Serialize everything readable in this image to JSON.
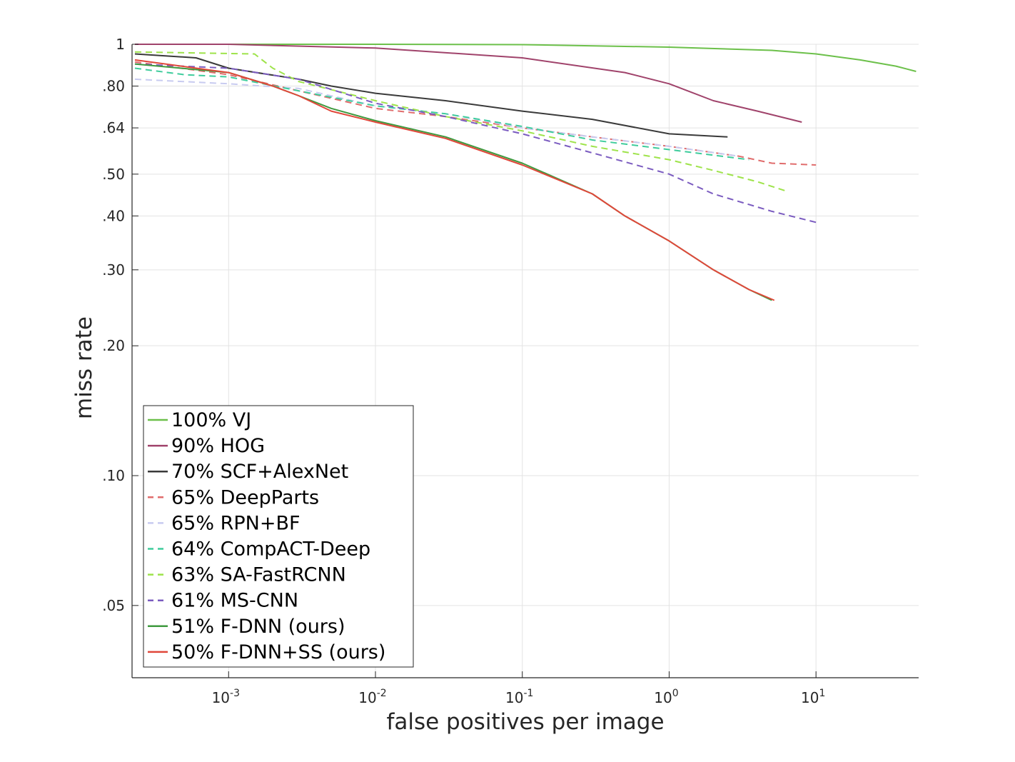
{
  "chart_data": {
    "type": "line",
    "title": "",
    "xlabel": "false positives per image",
    "ylabel": "miss rate",
    "x_scale": "log",
    "y_scale": "log",
    "xlim": [
      0.00022,
      50
    ],
    "ylim": [
      0.034,
      1
    ],
    "x_ticks": [
      {
        "value": 0.001,
        "base": "10",
        "exp": "-3"
      },
      {
        "value": 0.01,
        "base": "10",
        "exp": "-2"
      },
      {
        "value": 0.1,
        "base": "10",
        "exp": "-1"
      },
      {
        "value": 1,
        "base": "10",
        "exp": "0"
      },
      {
        "value": 10,
        "base": "10",
        "exp": "1"
      }
    ],
    "y_ticks": [
      {
        "value": 1,
        "label": "1"
      },
      {
        "value": 0.8,
        "label": ".80"
      },
      {
        "value": 0.64,
        "label": ".64"
      },
      {
        "value": 0.5,
        "label": ".50"
      },
      {
        "value": 0.4,
        "label": ".40"
      },
      {
        "value": 0.3,
        "label": ".30"
      },
      {
        "value": 0.2,
        "label": ".20"
      },
      {
        "value": 0.1,
        "label": ".10"
      },
      {
        "value": 0.05,
        "label": ".05"
      }
    ],
    "grid": true,
    "legend_position": "bottom-left",
    "series": [
      {
        "name": "100% VJ",
        "color": "#6cc04a",
        "dash": false,
        "points": [
          [
            0.00023,
            1.0
          ],
          [
            0.01,
            1.0
          ],
          [
            0.1,
            0.998
          ],
          [
            1,
            0.985
          ],
          [
            5,
            0.968
          ],
          [
            10,
            0.95
          ],
          [
            20,
            0.92
          ],
          [
            35,
            0.89
          ],
          [
            48,
            0.865
          ]
        ]
      },
      {
        "name": "90% HOG",
        "color": "#a0436b",
        "dash": false,
        "points": [
          [
            0.00023,
            1.0
          ],
          [
            0.001,
            1.0
          ],
          [
            0.01,
            0.98
          ],
          [
            0.1,
            0.93
          ],
          [
            0.5,
            0.86
          ],
          [
            1,
            0.81
          ],
          [
            2,
            0.74
          ],
          [
            4,
            0.7
          ],
          [
            8,
            0.66
          ]
        ]
      },
      {
        "name": "70% SCF+AlexNet",
        "color": "#3a3a3a",
        "dash": false,
        "points": [
          [
            0.00023,
            0.95
          ],
          [
            0.0006,
            0.93
          ],
          [
            0.001,
            0.88
          ],
          [
            0.003,
            0.83
          ],
          [
            0.005,
            0.8
          ],
          [
            0.01,
            0.77
          ],
          [
            0.03,
            0.74
          ],
          [
            0.1,
            0.7
          ],
          [
            0.3,
            0.67
          ],
          [
            1,
            0.62
          ],
          [
            2.5,
            0.61
          ]
        ]
      },
      {
        "name": "65% DeepParts",
        "color": "#e06c6c",
        "dash": true,
        "points": [
          [
            0.00023,
            0.91
          ],
          [
            0.001,
            0.85
          ],
          [
            0.003,
            0.78
          ],
          [
            0.01,
            0.71
          ],
          [
            0.03,
            0.68
          ],
          [
            0.1,
            0.64
          ],
          [
            0.3,
            0.61
          ],
          [
            1,
            0.58
          ],
          [
            3,
            0.55
          ],
          [
            5,
            0.53
          ],
          [
            10,
            0.525
          ]
        ]
      },
      {
        "name": "65% RPN+BF",
        "color": "#c8cbf0",
        "dash": true,
        "points": [
          [
            0.00023,
            0.83
          ],
          [
            0.001,
            0.81
          ],
          [
            0.003,
            0.79
          ],
          [
            0.01,
            0.72
          ],
          [
            0.03,
            0.69
          ],
          [
            0.1,
            0.64
          ],
          [
            0.3,
            0.61
          ],
          [
            1,
            0.58
          ],
          [
            3,
            0.55
          ]
        ]
      },
      {
        "name": "64% CompACT-Deep",
        "color": "#3ecc9c",
        "dash": true,
        "points": [
          [
            0.00023,
            0.88
          ],
          [
            0.0005,
            0.85
          ],
          [
            0.001,
            0.84
          ],
          [
            0.003,
            0.78
          ],
          [
            0.01,
            0.72
          ],
          [
            0.03,
            0.69
          ],
          [
            0.1,
            0.645
          ],
          [
            0.3,
            0.6
          ],
          [
            1,
            0.57
          ],
          [
            3.5,
            0.54
          ]
        ]
      },
      {
        "name": "63% SA-FastRCNN",
        "color": "#9ee34a",
        "dash": true,
        "points": [
          [
            0.00023,
            0.96
          ],
          [
            0.0015,
            0.95
          ],
          [
            0.002,
            0.88
          ],
          [
            0.003,
            0.82
          ],
          [
            0.01,
            0.74
          ],
          [
            0.03,
            0.68
          ],
          [
            0.1,
            0.63
          ],
          [
            0.3,
            0.58
          ],
          [
            1,
            0.54
          ],
          [
            2,
            0.51
          ],
          [
            4,
            0.48
          ],
          [
            6.5,
            0.455
          ]
        ]
      },
      {
        "name": "61% MS-CNN",
        "color": "#7b5cc0",
        "dash": true,
        "points": [
          [
            0.00023,
            0.9
          ],
          [
            0.001,
            0.88
          ],
          [
            0.003,
            0.83
          ],
          [
            0.01,
            0.73
          ],
          [
            0.03,
            0.68
          ],
          [
            0.1,
            0.62
          ],
          [
            0.3,
            0.56
          ],
          [
            1,
            0.5
          ],
          [
            2,
            0.45
          ],
          [
            5,
            0.41
          ],
          [
            10.5,
            0.385
          ]
        ]
      },
      {
        "name": "51% F-DNN (ours)",
        "color": "#3f9a3f",
        "dash": false,
        "points": [
          [
            0.00023,
            0.9
          ],
          [
            0.001,
            0.86
          ],
          [
            0.002,
            0.8
          ],
          [
            0.003,
            0.76
          ],
          [
            0.005,
            0.71
          ],
          [
            0.01,
            0.665
          ],
          [
            0.03,
            0.61
          ],
          [
            0.1,
            0.53
          ],
          [
            0.3,
            0.45
          ],
          [
            0.5,
            0.4
          ],
          [
            1,
            0.35
          ],
          [
            2,
            0.3
          ],
          [
            3.5,
            0.27
          ],
          [
            5,
            0.255
          ]
        ]
      },
      {
        "name": "50% F-DNN+SS (ours)",
        "color": "#e0473a",
        "dash": false,
        "points": [
          [
            0.00023,
            0.92
          ],
          [
            0.001,
            0.86
          ],
          [
            0.002,
            0.8
          ],
          [
            0.003,
            0.76
          ],
          [
            0.005,
            0.7
          ],
          [
            0.01,
            0.66
          ],
          [
            0.03,
            0.605
          ],
          [
            0.1,
            0.525
          ],
          [
            0.3,
            0.45
          ],
          [
            0.5,
            0.4
          ],
          [
            1,
            0.35
          ],
          [
            2,
            0.3
          ],
          [
            3.5,
            0.27
          ],
          [
            5.2,
            0.255
          ]
        ]
      }
    ]
  }
}
